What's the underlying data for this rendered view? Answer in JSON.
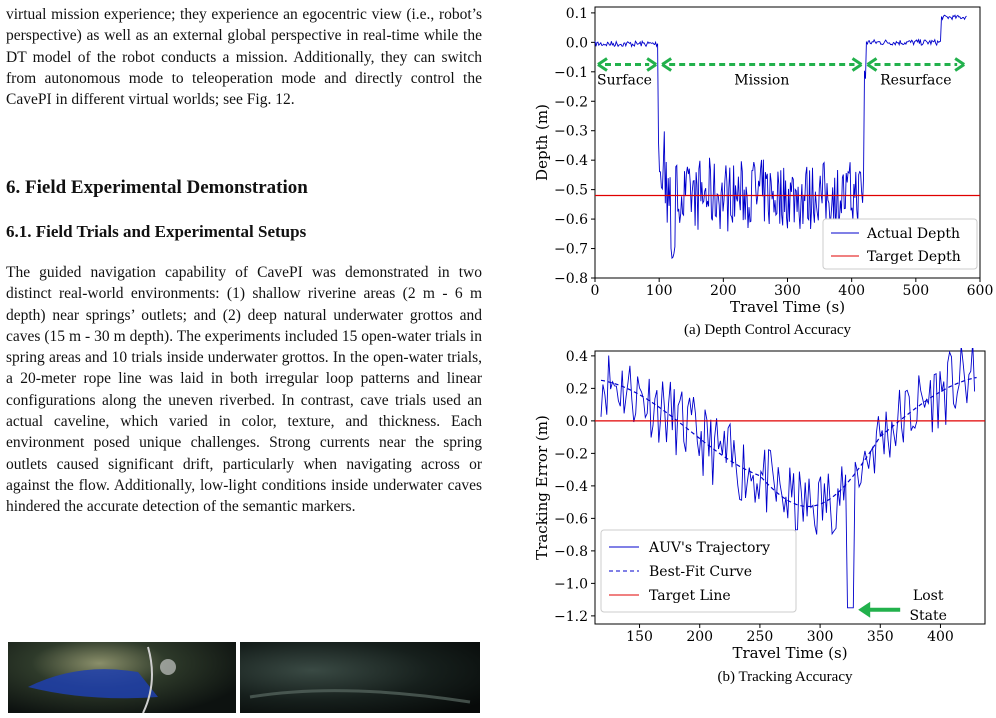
{
  "left": {
    "para1": "virtual mission experience; they experience an egocentric view (i.e., robot’s perspective) as well as an external global perspective in real-time while the DT model of the robot conducts a mission. Additionally, they can switch from autonomous mode to teleoperation mode and directly control the CavePI in different virtual worlds; see Fig. 12.",
    "section_title": "6. Field Experimental Demonstration",
    "subsection_title": "6.1. Field Trials and Experimental Setups",
    "para2": "The guided navigation capability of CavePI was demonstrated in two distinct real-world environments: (1) shallow riverine areas (2 m - 6 m depth) near springs’ outlets; and (2) deep natural underwater grottos and caves (15 m - 30 m depth). The experiments included 15 open-water trials in spring areas and 10 trials inside underwater grottos. In the open-water trials, a 20-meter rope line was laid in both irregular loop patterns and linear configurations along the uneven riverbed. In contrast, cave trials used an actual caveline, which varied in color, texture, and thickness. Each environment posed unique challenges. Strong currents near the spring outlets caused significant drift, particularly when navigating across or against the flow. Additionally, low-light conditions inside underwater caves hindered the accurate detection of the semantic markers."
  },
  "chart_data": [
    {
      "type": "line",
      "caption": "(a) Depth Control Accuracy",
      "xlabel": "Travel Time (s)",
      "ylabel": "Depth (m)",
      "xlim": [
        0,
        600
      ],
      "ylim": [
        -0.8,
        0.12
      ],
      "xticks": [
        0,
        100,
        200,
        300,
        400,
        500,
        600
      ],
      "xtick_labels": [
        "0",
        "100",
        "200",
        "300",
        "400",
        "500",
        "600"
      ],
      "yticks": [
        0.1,
        0.0,
        -0.1,
        -0.2,
        -0.3,
        -0.4,
        -0.5,
        -0.6,
        -0.7,
        -0.8
      ],
      "ytick_labels": [
        "0.1",
        "0.0",
        "−0.1",
        "−0.2",
        "−0.3",
        "−0.4",
        "−0.5",
        "−0.6",
        "−0.7",
        "−0.8"
      ],
      "series": [
        {
          "name": "Actual Depth",
          "color": "#0000cc"
        },
        {
          "name": "Target Depth",
          "color": "#e00000",
          "value": -0.52
        }
      ],
      "phases": [
        {
          "label": "Surface",
          "x_from": 0,
          "x_to": 100
        },
        {
          "label": "Mission",
          "x_from": 100,
          "x_to": 420
        },
        {
          "label": "Resurface",
          "x_from": 420,
          "x_to": 580
        }
      ],
      "legend": "bottom-right"
    },
    {
      "type": "line",
      "caption": "(b) Tracking Accuracy",
      "xlabel": "Travel Time (s)",
      "ylabel": "Tracking Error (m)",
      "xlim": [
        113,
        437
      ],
      "ylim": [
        -1.25,
        0.43
      ],
      "xticks": [
        150,
        200,
        250,
        300,
        350,
        400
      ],
      "xtick_labels": [
        "150",
        "200",
        "250",
        "300",
        "350",
        "400"
      ],
      "yticks": [
        0.4,
        0.2,
        0.0,
        -0.2,
        -0.4,
        -0.6,
        -0.8,
        -1.0,
        -1.2
      ],
      "ytick_labels": [
        "0.4",
        "0.2",
        "0.0",
        "−0.2",
        "−0.4",
        "−0.6",
        "−0.8",
        "−1.0",
        "−1.2"
      ],
      "series": [
        {
          "name": "AUV's Trajectory",
          "color": "#0000cc"
        },
        {
          "name": "Best-Fit Curve",
          "color": "#0000cc",
          "style": "dashed"
        },
        {
          "name": "Target Line",
          "color": "#e00000",
          "value": 0.0
        }
      ],
      "annotation": {
        "line1": "Lost",
        "line2": "State",
        "x": 325,
        "y": -1.15
      },
      "legend": "bottom-left"
    }
  ],
  "colors": {
    "actual": "#0000cc",
    "target": "#e00000",
    "arrow": "#22b14c"
  }
}
